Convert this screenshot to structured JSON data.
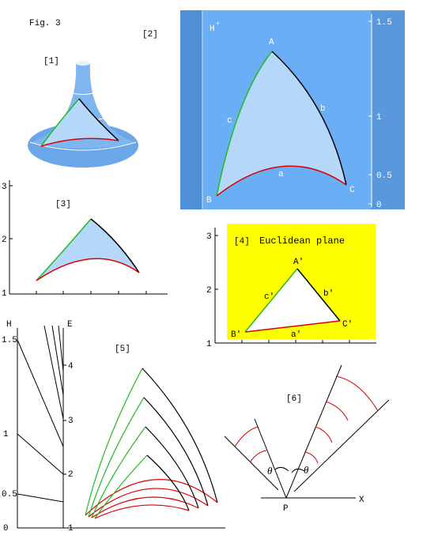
{
  "figure_label": "Fig. 3",
  "panels": {
    "p1": {
      "label": "[1]"
    },
    "p2": {
      "label": "[2]",
      "space": "H",
      "space_sup": "+",
      "vertices": [
        "A",
        "B",
        "C"
      ],
      "sides": [
        "a",
        "b",
        "c"
      ],
      "ticks": [
        "1.5",
        "1",
        "0.5",
        "0"
      ]
    },
    "p3": {
      "label": "[3]",
      "ticks": [
        "3",
        "2",
        "1"
      ]
    },
    "p4": {
      "label": "[4]",
      "title": "Euclidean plane",
      "vertices": [
        "A'",
        "B'",
        "C'"
      ],
      "sides": [
        "a'",
        "b'",
        "c'"
      ],
      "ticks": [
        "3",
        "2",
        "1"
      ]
    },
    "p5": {
      "label": "[5]",
      "left_axis": "H",
      "right_axis": "E",
      "left_ticks": [
        "1.5",
        "1",
        "0.5",
        "0"
      ],
      "right_ticks": [
        "4",
        "3",
        "2",
        "1"
      ]
    },
    "p6": {
      "label": "[6]",
      "point": "P",
      "axis": "X",
      "angle": "θ"
    }
  }
}
